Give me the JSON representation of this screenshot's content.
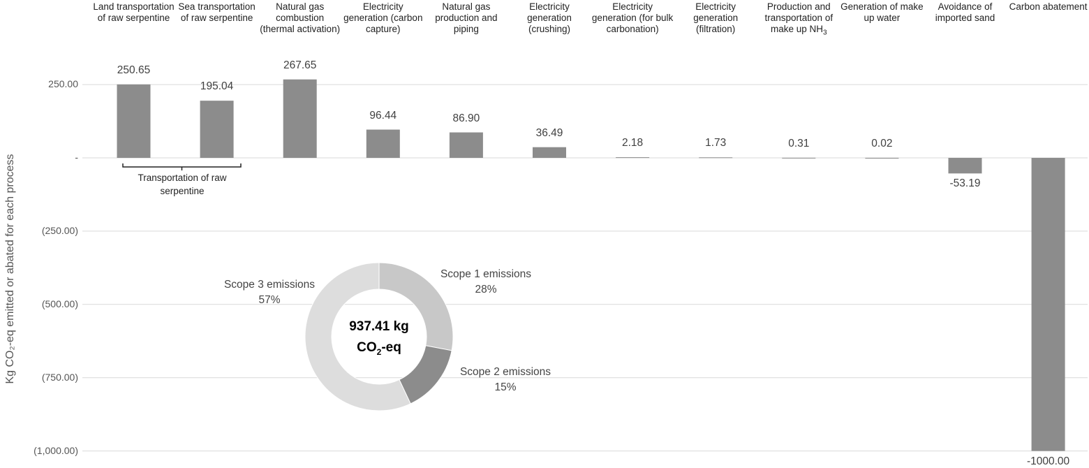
{
  "chart_data": [
    {
      "type": "bar",
      "ylabel": "Kg CO₂-eq emitted or abated for each process",
      "ylim": [
        -1000,
        300
      ],
      "grid": true,
      "y_ticks": [
        "250.00",
        "-",
        "(250.00)",
        "(500.00)",
        "(750.00)",
        "(1,000.00)"
      ],
      "categories": [
        "Land transportation of raw serpentine",
        "Sea transportation of raw serpentine",
        "Natural gas combustion (thermal activation)",
        "Electricity generation (carbon capture)",
        "Natural gas production and piping",
        "Electricity generation (crushing)",
        "Electricity generation (for bulk carbonation)",
        "Electricity generation (filtration)",
        "Production and transportation of make up NH₃",
        "Generation of make up water",
        "Avoidance of imported sand",
        "Carbon abatement"
      ],
      "values": [
        250.65,
        195.04,
        267.65,
        96.44,
        86.9,
        36.49,
        2.18,
        1.73,
        0.31,
        0.02,
        -53.19,
        -1000
      ],
      "data_labels": [
        "250.65",
        "195.04",
        "267.65",
        "96.44",
        "86.90",
        "36.49",
        "2.18",
        "1.73",
        "0.31",
        "0.02",
        "-53.19",
        "-1000.00"
      ],
      "annotation": "Transportation of raw serpentine",
      "bar_color": "#8c8c8c"
    },
    {
      "type": "pie",
      "center_label_value": "937.41 kg",
      "center_label_unit": "CO₂-eq",
      "slices": [
        {
          "label": "Scope 1 emissions",
          "percent": "28%",
          "value": 28,
          "color": "#c8c8c8"
        },
        {
          "label": "Scope 2 emissions",
          "percent": "15%",
          "value": 15,
          "color": "#8c8c8c"
        },
        {
          "label": "Scope 3 emissions",
          "percent": "57%",
          "value": 57,
          "color": "#dddddd"
        }
      ]
    }
  ]
}
